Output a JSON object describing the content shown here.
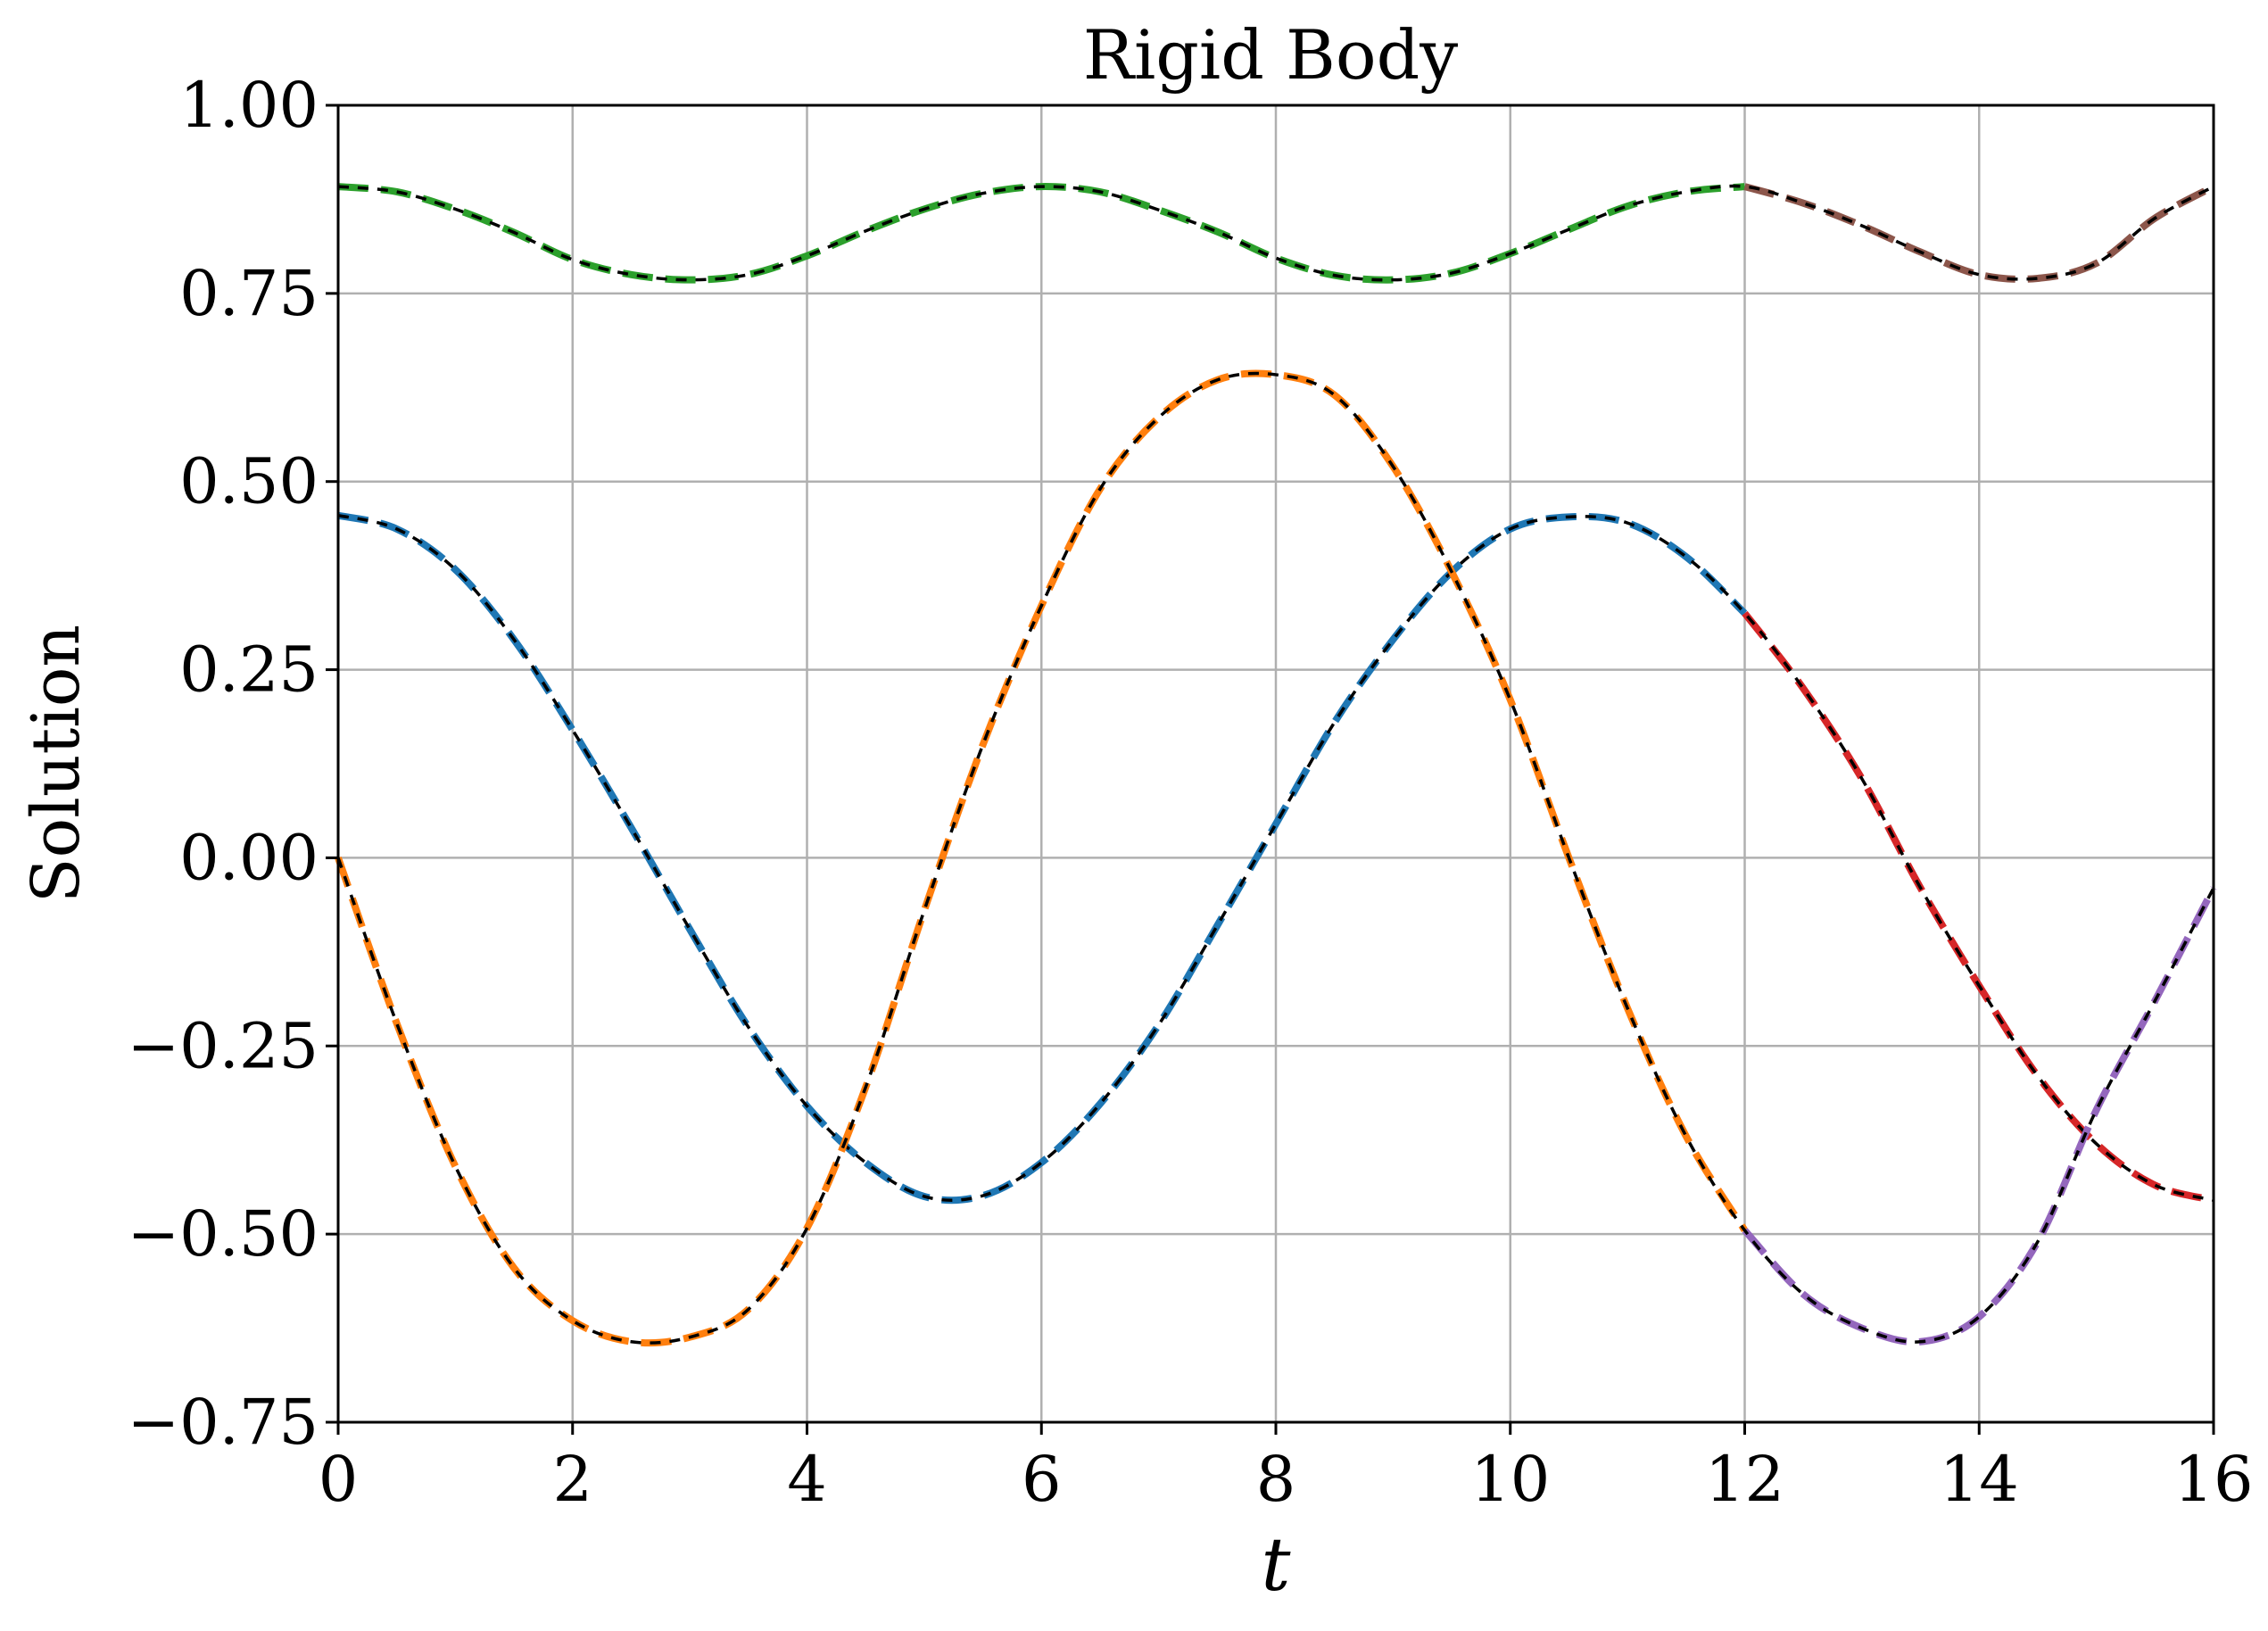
{
  "chart_data": {
    "type": "line",
    "title": "Rigid Body",
    "xlabel": "t",
    "ylabel": "Solution",
    "xlim": [
      0,
      16
    ],
    "ylim": [
      -0.75,
      1.0
    ],
    "xticks": [
      0,
      2,
      4,
      6,
      8,
      10,
      12,
      14,
      16
    ],
    "xtick_labels": [
      "0",
      "2",
      "4",
      "6",
      "8",
      "10",
      "12",
      "14",
      "16"
    ],
    "yticks": [
      -0.75,
      -0.5,
      -0.25,
      0.0,
      0.25,
      0.5,
      0.75,
      1.0
    ],
    "ytick_labels": [
      "−0.75",
      "−0.50",
      "−0.25",
      "0.00",
      "0.25",
      "0.50",
      "0.75",
      "1.00"
    ],
    "grid": true,
    "legend": "none",
    "x": [
      0,
      0.5,
      1,
      1.5,
      2,
      2.5,
      3,
      3.5,
      4,
      4.5,
      5,
      5.5,
      6,
      6.5,
      7,
      7.5,
      8,
      8.5,
      9,
      9.5,
      10,
      10.5,
      11,
      11.5,
      12,
      12.5,
      13,
      13.5,
      14,
      14.5,
      15,
      15.5,
      16
    ],
    "series": [
      {
        "color": "#1f77b4",
        "color_after_t12": "#d62728",
        "style": "dashed colored with black dashed reference",
        "values": [
          0.455,
          0.437,
          0.383,
          0.29,
          0.17,
          0.04,
          -0.095,
          -0.225,
          -0.33,
          -0.405,
          -0.45,
          -0.449,
          -0.405,
          -0.327,
          -0.222,
          -0.09,
          0.045,
          0.18,
          0.29,
          0.38,
          0.437,
          0.453,
          0.445,
          0.4,
          0.325,
          0.225,
          0.105,
          -0.04,
          -0.17,
          -0.29,
          -0.38,
          -0.435,
          -0.455
        ]
      },
      {
        "color": "#ff7f0e",
        "color_after_t12": "#9467bd",
        "style": "dashed colored with black dashed reference",
        "values": [
          0.0,
          -0.22,
          -0.41,
          -0.545,
          -0.615,
          -0.643,
          -0.637,
          -0.6,
          -0.492,
          -0.305,
          -0.07,
          0.15,
          0.335,
          0.49,
          0.585,
          0.635,
          0.642,
          0.615,
          0.52,
          0.38,
          0.21,
          0.0,
          -0.2,
          -0.37,
          -0.495,
          -0.58,
          -0.625,
          -0.643,
          -0.61,
          -0.51,
          -0.335,
          -0.19,
          -0.04
        ]
      },
      {
        "color": "#2ca02c",
        "color_after_t12": "#8c564b",
        "style": "dashed colored with black dashed reference",
        "values": [
          0.892,
          0.885,
          0.862,
          0.831,
          0.795,
          0.775,
          0.768,
          0.775,
          0.8,
          0.833,
          0.862,
          0.883,
          0.892,
          0.885,
          0.861,
          0.832,
          0.797,
          0.774,
          0.768,
          0.777,
          0.803,
          0.835,
          0.866,
          0.885,
          0.892,
          0.87,
          0.84,
          0.805,
          0.775,
          0.77,
          0.79,
          0.85,
          0.892
        ]
      }
    ]
  }
}
